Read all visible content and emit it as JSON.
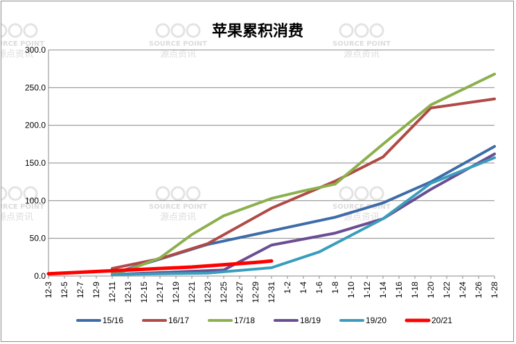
{
  "chart_data": {
    "type": "line",
    "title": "苹果累积消费",
    "xlabel": "",
    "ylabel": "",
    "ylim": [
      0,
      300
    ],
    "yticks": [
      "0.0",
      "50.0",
      "100.0",
      "150.0",
      "200.0",
      "250.0",
      "300.0"
    ],
    "grid": true,
    "legend_position": "bottom",
    "categories": [
      "12-3",
      "12-5",
      "12-7",
      "12-9",
      "12-11",
      "12-13",
      "12-15",
      "12-17",
      "12-19",
      "12-21",
      "12-23",
      "12-25",
      "12-27",
      "12-29",
      "12-31",
      "1-2",
      "1-4",
      "1-6",
      "1-8",
      "1-10",
      "1-12",
      "1-14",
      "1-16",
      "1-18",
      "1-20",
      "1-22",
      "1-24",
      "1-26",
      "1-28"
    ],
    "series": [
      {
        "name": "15/16",
        "color": "#3D6CA8",
        "width": 4,
        "points": [
          [
            4,
            3
          ],
          [
            10,
            42
          ],
          [
            14,
            60
          ],
          [
            18,
            78
          ],
          [
            21,
            97
          ],
          [
            24,
            125
          ],
          [
            28,
            172
          ]
        ]
      },
      {
        "name": "16/17",
        "color": "#B04A47",
        "width": 4,
        "points": [
          [
            4,
            10
          ],
          [
            7,
            23
          ],
          [
            10,
            43
          ],
          [
            14,
            90
          ],
          [
            18,
            126
          ],
          [
            21,
            158
          ],
          [
            24,
            223
          ],
          [
            28,
            235
          ]
        ]
      },
      {
        "name": "17/18",
        "color": "#8CB04D",
        "width": 4,
        "points": [
          [
            4,
            3
          ],
          [
            5,
            8
          ],
          [
            7,
            24
          ],
          [
            9,
            55
          ],
          [
            11,
            80
          ],
          [
            14,
            103
          ],
          [
            16,
            113
          ],
          [
            18,
            122
          ],
          [
            21,
            175
          ],
          [
            24,
            227
          ],
          [
            28,
            268
          ]
        ]
      },
      {
        "name": "18/19",
        "color": "#6A4E92",
        "width": 4,
        "points": [
          [
            4,
            2
          ],
          [
            11,
            8
          ],
          [
            14,
            41
          ],
          [
            18,
            57
          ],
          [
            21,
            76
          ],
          [
            24,
            115
          ],
          [
            28,
            162
          ]
        ]
      },
      {
        "name": "19/20",
        "color": "#3A9DBD",
        "width": 4,
        "points": [
          [
            4,
            2
          ],
          [
            10,
            4
          ],
          [
            14,
            11
          ],
          [
            17,
            32
          ],
          [
            21,
            76
          ],
          [
            24,
            123
          ],
          [
            28,
            157
          ]
        ]
      },
      {
        "name": "20/21",
        "color": "#FF0000",
        "width": 5,
        "points": [
          [
            0,
            3
          ],
          [
            4,
            7
          ],
          [
            9,
            12
          ],
          [
            13,
            18
          ],
          [
            14,
            20
          ]
        ]
      }
    ],
    "watermark": {
      "brand": "SOURCE POINT",
      "brand_cn": "源点资讯"
    }
  }
}
